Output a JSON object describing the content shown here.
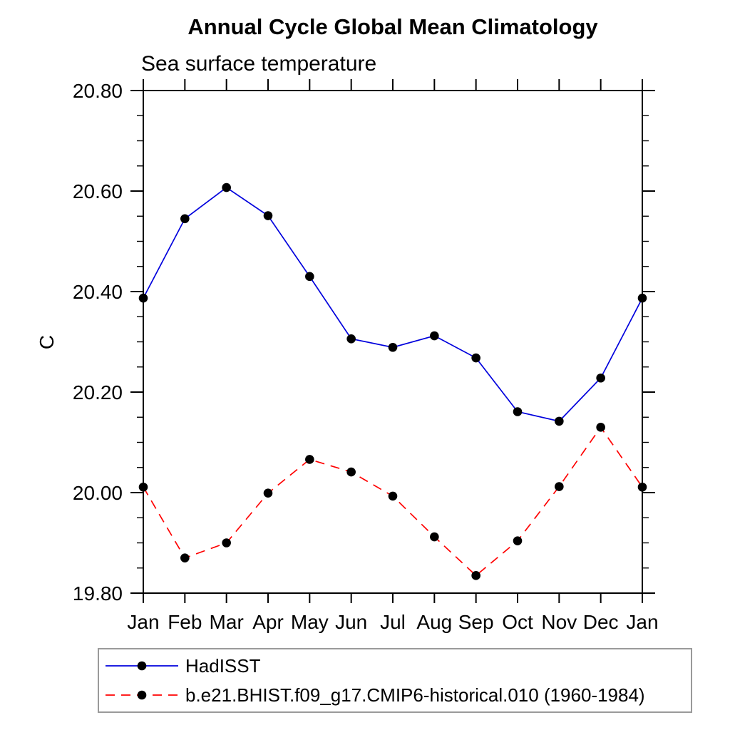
{
  "chart_data": {
    "type": "line",
    "title": "Annual Cycle Global Mean Climatology",
    "subtitle": "Sea surface temperature",
    "ylabel": "C",
    "xlabel": "",
    "categories": [
      "Jan",
      "Feb",
      "Mar",
      "Apr",
      "May",
      "Jun",
      "Jul",
      "Aug",
      "Sep",
      "Oct",
      "Nov",
      "Dec",
      "Jan"
    ],
    "ylim": [
      19.8,
      20.8
    ],
    "ytick_values": [
      19.8,
      20.0,
      20.2,
      20.4,
      20.6,
      20.8
    ],
    "ytick_labels": [
      "19.80",
      "20.00",
      "20.20",
      "20.40",
      "20.60",
      "20.80"
    ],
    "yminor_interval": 0.05,
    "grid": false,
    "legend_position": "bottom-left",
    "axis_color": "#000000",
    "marker_color": "#000000",
    "series": [
      {
        "name": "HadISST",
        "color": "#0000dd",
        "style": "solid",
        "marker": "circle",
        "values": [
          20.387,
          20.545,
          20.607,
          20.551,
          20.43,
          20.306,
          20.289,
          20.312,
          20.268,
          20.161,
          20.142,
          20.228,
          20.387
        ]
      },
      {
        "name": "b.e21.BHIST.f09_g17.CMIP6-historical.010 (1960-1984)",
        "color": "#ff0000",
        "style": "dashed",
        "marker": "circle",
        "values": [
          20.011,
          19.87,
          19.9,
          19.999,
          20.066,
          20.041,
          19.993,
          19.912,
          19.835,
          19.904,
          20.012,
          20.13,
          20.011
        ]
      }
    ]
  }
}
